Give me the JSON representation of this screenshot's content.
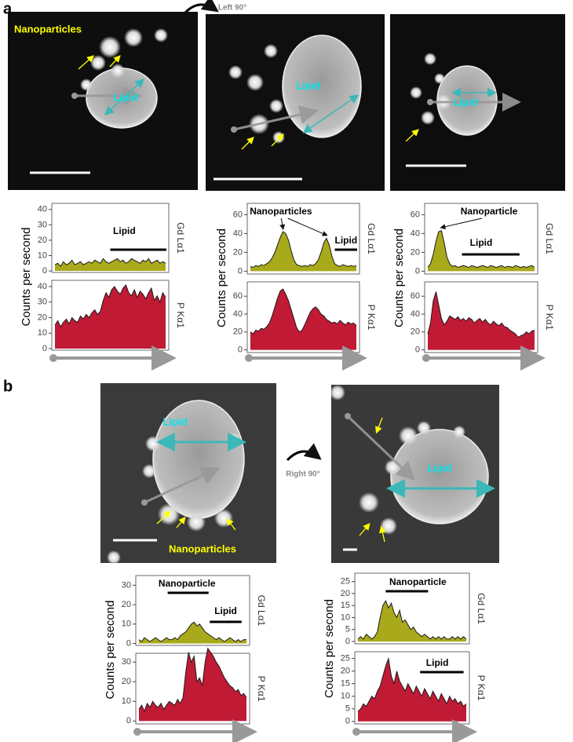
{
  "figure": {
    "panels": [
      {
        "label": "a",
        "rotation": "Left 90°",
        "images": [
          {
            "labels": [
              {
                "text": "Nanoparticles",
                "color": "#ffff00"
              },
              {
                "text": "Lipid",
                "color": "#00e5ee"
              }
            ]
          },
          {
            "labels": [
              {
                "text": "Lipid",
                "color": "#00e5ee"
              }
            ]
          },
          {
            "labels": [
              {
                "text": "Lipid",
                "color": "#00e5ee"
              }
            ]
          }
        ]
      },
      {
        "label": "b",
        "rotation": "Right 90°",
        "images": [
          {
            "labels": [
              {
                "text": "Lipid",
                "color": "#00e5ee"
              },
              {
                "text": "Nanoparticles",
                "color": "#ffff00"
              }
            ]
          },
          {
            "labels": [
              {
                "text": "Lipid",
                "color": "#00e5ee"
              }
            ]
          }
        ]
      }
    ]
  },
  "chart_data": [
    {
      "type": "area",
      "ylabel": "Counts per second",
      "side_label": "Gd Lα1",
      "color": "#a9a91c",
      "ylim": [
        -1,
        44
      ],
      "yticks": [
        0,
        10,
        20,
        30,
        40
      ],
      "annotations": [
        {
          "text": "Lipid"
        }
      ],
      "values": [
        4,
        5,
        3,
        6,
        4,
        5,
        7,
        4,
        5,
        6,
        4,
        5,
        6,
        5,
        7,
        6,
        5,
        8,
        6,
        5,
        6,
        7,
        8,
        6,
        7,
        5,
        6,
        8,
        7,
        6,
        5,
        7,
        6,
        8,
        5,
        6,
        7,
        5,
        6,
        5
      ]
    },
    {
      "type": "area",
      "side_label": "P Kα1",
      "color": "#c01a35",
      "ylim": [
        -1,
        44
      ],
      "yticks": [
        0,
        10,
        20,
        30,
        40
      ],
      "values": [
        15,
        18,
        14,
        17,
        19,
        16,
        20,
        18,
        17,
        21,
        19,
        22,
        20,
        23,
        25,
        22,
        24,
        31,
        36,
        33,
        38,
        40,
        37,
        35,
        39,
        41,
        36,
        34,
        38,
        33,
        37,
        35,
        32,
        36,
        39,
        31,
        34,
        30,
        36,
        33
      ]
    },
    {
      "type": "area",
      "ylabel": "Counts per second",
      "side_label": "Gd Lα1",
      "color": "#a9a91c",
      "ylim": [
        -3,
        72
      ],
      "yticks": [
        0,
        20,
        40,
        60
      ],
      "annotations": [
        {
          "text": "Nanoparticles"
        },
        {
          "text": "Lipid"
        }
      ],
      "values": [
        5,
        4,
        6,
        5,
        7,
        6,
        8,
        10,
        14,
        20,
        28,
        36,
        42,
        40,
        33,
        22,
        12,
        7,
        6,
        5,
        6,
        5,
        7,
        6,
        8,
        12,
        20,
        30,
        35,
        28,
        16,
        8,
        6,
        5,
        7,
        6,
        5,
        6,
        5,
        6
      ]
    },
    {
      "type": "area",
      "side_label": "P Kα1",
      "color": "#c01a35",
      "ylim": [
        -3,
        76
      ],
      "yticks": [
        0,
        20,
        40,
        60
      ],
      "values": [
        20,
        18,
        22,
        21,
        24,
        23,
        26,
        30,
        38,
        48,
        58,
        66,
        68,
        62,
        55,
        45,
        35,
        25,
        20,
        22,
        28,
        35,
        42,
        46,
        48,
        45,
        40,
        38,
        34,
        32,
        30,
        31,
        29,
        33,
        30,
        28,
        31,
        29,
        30,
        27
      ]
    },
    {
      "type": "area",
      "ylabel": "Counts per second",
      "side_label": "Gd Lα1",
      "color": "#a9a91c",
      "ylim": [
        -3,
        72
      ],
      "yticks": [
        0,
        20,
        40,
        60
      ],
      "annotations": [
        {
          "text": "Nanoparticle"
        },
        {
          "text": "Lipid"
        }
      ],
      "values": [
        4,
        8,
        18,
        32,
        42,
        43,
        30,
        15,
        8,
        5,
        6,
        4,
        5,
        6,
        5,
        4,
        6,
        5,
        4,
        5,
        6,
        5,
        4,
        6,
        5,
        4,
        5,
        6,
        4,
        5,
        5,
        4,
        6,
        5,
        4,
        5,
        4,
        5,
        6,
        4
      ]
    },
    {
      "type": "area",
      "side_label": "P Kα1",
      "color": "#c01a35",
      "ylim": [
        -3,
        76
      ],
      "yticks": [
        0,
        20,
        40,
        60
      ],
      "values": [
        18,
        30,
        55,
        65,
        50,
        35,
        28,
        32,
        38,
        36,
        34,
        37,
        33,
        35,
        32,
        36,
        34,
        30,
        33,
        35,
        31,
        34,
        30,
        28,
        32,
        29,
        27,
        30,
        26,
        25,
        22,
        20,
        18,
        14,
        16,
        17,
        20,
        18,
        21,
        22
      ]
    },
    {
      "type": "area",
      "ylabel": "Counts per second",
      "side_label": "Gd Lα1",
      "color": "#a9a91c",
      "ylim": [
        -1,
        35
      ],
      "yticks": [
        0,
        10,
        20,
        30
      ],
      "annotations": [
        {
          "text": "Nanoparticle"
        },
        {
          "text": "Lipid"
        }
      ],
      "values": [
        2,
        1,
        3,
        2,
        1,
        2,
        3,
        2,
        1,
        2,
        3,
        2,
        2,
        3,
        2,
        4,
        5,
        6,
        8,
        10,
        11,
        9,
        10,
        8,
        6,
        5,
        4,
        3,
        2,
        3,
        2,
        1,
        2,
        3,
        2,
        1,
        2,
        1,
        2,
        2
      ]
    },
    {
      "type": "area",
      "side_label": "P Kα1",
      "color": "#c01a35",
      "ylim": [
        -1.5,
        34.5
      ],
      "yticks": [
        0,
        10,
        20,
        30
      ],
      "values": [
        6,
        8,
        5,
        9,
        7,
        10,
        8,
        7,
        9,
        6,
        8,
        10,
        9,
        8,
        11,
        9,
        12,
        25,
        35,
        30,
        33,
        20,
        22,
        18,
        30,
        37,
        35,
        33,
        30,
        28,
        25,
        22,
        20,
        18,
        17,
        15,
        16,
        13,
        14,
        12
      ]
    },
    {
      "type": "area",
      "ylabel": "Counts per second",
      "side_label": "Gd Lα1",
      "color": "#a9a91c",
      "ylim": [
        -1,
        28.5
      ],
      "yticks": [
        0,
        5,
        10,
        15,
        20,
        25
      ],
      "annotations": [
        {
          "text": "Nanoparticle"
        }
      ],
      "values": [
        1,
        2,
        1,
        3,
        2,
        1,
        2,
        4,
        10,
        15,
        17,
        14,
        16,
        12,
        10,
        13,
        8,
        9,
        7,
        5,
        6,
        4,
        3,
        2,
        3,
        2,
        1,
        2,
        1,
        2,
        1,
        2,
        1,
        1,
        2,
        1,
        2,
        1,
        2,
        1
      ]
    },
    {
      "type": "area",
      "side_label": "P Kα1",
      "color": "#c01a35",
      "ylim": [
        -1,
        27.7
      ],
      "yticks": [
        0,
        5,
        10,
        15,
        20,
        25
      ],
      "annotations": [
        {
          "text": "Lipid"
        }
      ],
      "values": [
        4,
        5,
        7,
        6,
        8,
        10,
        9,
        12,
        14,
        18,
        22,
        25,
        18,
        15,
        20,
        16,
        14,
        12,
        15,
        13,
        11,
        14,
        12,
        10,
        13,
        11,
        9,
        12,
        10,
        8,
        11,
        9,
        7,
        10,
        8,
        9,
        7,
        8,
        6,
        7
      ]
    }
  ]
}
